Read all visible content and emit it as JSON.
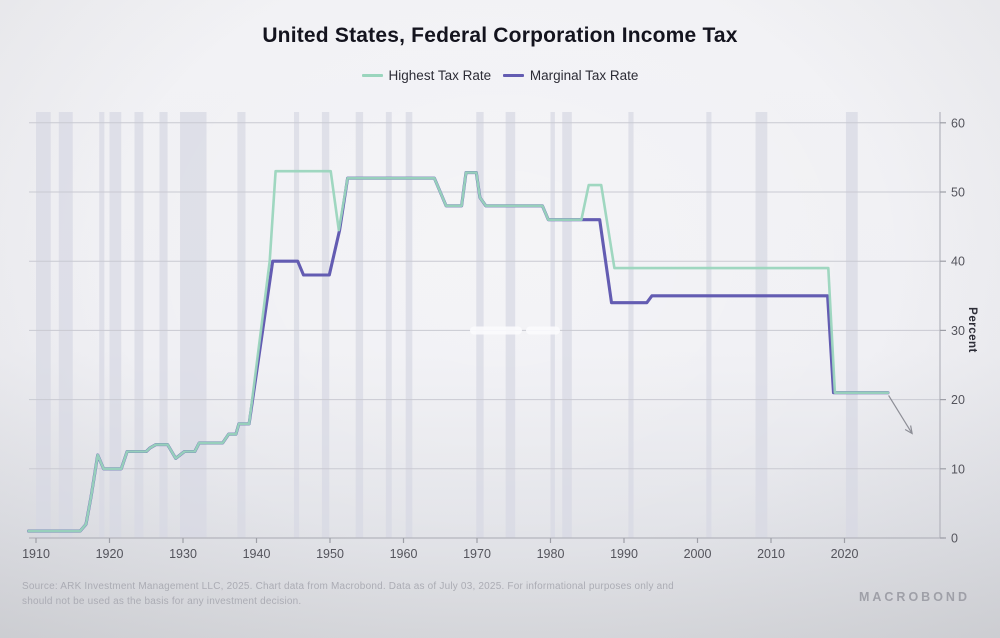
{
  "title": "United States, Federal Corporation Income Tax",
  "legend": [
    {
      "label": "Highest Tax Rate",
      "color": "#9ad5bd"
    },
    {
      "label": "Marginal Tax Rate",
      "color": "#635cb2"
    }
  ],
  "y_axis": {
    "unit_label": "Percent",
    "ticks": [
      0,
      10,
      20,
      30,
      40,
      50,
      60
    ]
  },
  "x_axis": {
    "ticks": [
      1910,
      1920,
      1930,
      1940,
      1950,
      1960,
      1970,
      1980,
      1990,
      2000,
      2010,
      2020
    ]
  },
  "footer": {
    "source_line1": "Source: ARK Investment Management LLC, 2025. Chart data from Macrobond. Data as of July 03, 2025. For informational purposes only and",
    "source_line2": "should not be used as the basis for any investment decision.",
    "logo": "MACROBOND"
  },
  "chart_data": {
    "type": "line",
    "title": "United States, Federal Corporation Income Tax",
    "xlabel": "",
    "ylabel": "Percent",
    "xlim": [
      1908.5,
      2027
    ],
    "ylim": [
      0,
      62
    ],
    "grid": true,
    "legend_position": "top",
    "background_bands_color": "#d7d8e3",
    "series": [
      {
        "name": "Highest Tax Rate",
        "color": "#9ad5bd",
        "points": [
          [
            1909,
            1
          ],
          [
            1916,
            1
          ],
          [
            1916.8,
            2
          ],
          [
            1917.5,
            6
          ],
          [
            1918.4,
            12
          ],
          [
            1919.2,
            10
          ],
          [
            1921.6,
            10
          ],
          [
            1922.4,
            12.5
          ],
          [
            1925,
            12.5
          ],
          [
            1925.5,
            13
          ],
          [
            1926.3,
            13.5
          ],
          [
            1927.9,
            13.5
          ],
          [
            1929,
            11.5
          ],
          [
            1930.2,
            12.5
          ],
          [
            1931.6,
            12.5
          ],
          [
            1932.2,
            13.75
          ],
          [
            1935.4,
            13.75
          ],
          [
            1936.2,
            15
          ],
          [
            1937.2,
            15
          ],
          [
            1937.6,
            16.5
          ],
          [
            1939,
            16.5
          ],
          [
            1941.8,
            40
          ],
          [
            1942.6,
            53
          ],
          [
            1950.1,
            53
          ],
          [
            1951.2,
            44.5
          ],
          [
            1952.4,
            52
          ],
          [
            1964.2,
            52
          ],
          [
            1965.8,
            48
          ],
          [
            1967.9,
            48
          ],
          [
            1968.5,
            52.8
          ],
          [
            1969.9,
            52.8
          ],
          [
            1970.4,
            49.2
          ],
          [
            1971.2,
            48
          ],
          [
            1978.9,
            48
          ],
          [
            1979.7,
            46
          ],
          [
            1984.2,
            46
          ],
          [
            1985.2,
            51
          ],
          [
            1986.9,
            51
          ],
          [
            1988.7,
            39
          ],
          [
            2017.8,
            39
          ],
          [
            2018.7,
            21
          ],
          [
            2025.9,
            21
          ]
        ]
      },
      {
        "name": "Marginal Tax Rate",
        "color": "#635cb2",
        "points": [
          [
            1909,
            1
          ],
          [
            1916,
            1
          ],
          [
            1916.8,
            2
          ],
          [
            1917.5,
            6
          ],
          [
            1918.4,
            12
          ],
          [
            1919.2,
            10
          ],
          [
            1921.6,
            10
          ],
          [
            1922.4,
            12.5
          ],
          [
            1925,
            12.5
          ],
          [
            1925.5,
            13
          ],
          [
            1926.3,
            13.5
          ],
          [
            1927.9,
            13.5
          ],
          [
            1929,
            11.5
          ],
          [
            1930.2,
            12.5
          ],
          [
            1931.6,
            12.5
          ],
          [
            1932.2,
            13.75
          ],
          [
            1935.4,
            13.75
          ],
          [
            1936.2,
            15
          ],
          [
            1937.2,
            15
          ],
          [
            1937.6,
            16.5
          ],
          [
            1939,
            16.5
          ],
          [
            1942.2,
            40
          ],
          [
            1945.6,
            40
          ],
          [
            1946.4,
            38
          ],
          [
            1949.9,
            38
          ],
          [
            1951.3,
            44.5
          ],
          [
            1952.4,
            52
          ],
          [
            1964.2,
            52
          ],
          [
            1965.8,
            48
          ],
          [
            1967.9,
            48
          ],
          [
            1968.5,
            52.8
          ],
          [
            1969.9,
            52.8
          ],
          [
            1970.4,
            49.2
          ],
          [
            1971.2,
            48
          ],
          [
            1978.9,
            48
          ],
          [
            1979.7,
            46
          ],
          [
            1986.7,
            46
          ],
          [
            1988.3,
            34
          ],
          [
            1993.1,
            34
          ],
          [
            1993.8,
            35
          ],
          [
            2017.7,
            35
          ],
          [
            2018.5,
            21
          ],
          [
            2025.9,
            21
          ]
        ]
      }
    ],
    "recession_bands": [
      [
        1910.0,
        1912.0
      ],
      [
        1913.1,
        1915.0
      ],
      [
        1918.6,
        1919.3
      ],
      [
        1920.0,
        1921.6
      ],
      [
        1923.4,
        1924.6
      ],
      [
        1926.8,
        1927.9
      ],
      [
        1929.6,
        1933.2
      ],
      [
        1937.4,
        1938.5
      ],
      [
        1945.1,
        1945.8
      ],
      [
        1948.9,
        1949.9
      ],
      [
        1953.5,
        1954.5
      ],
      [
        1957.6,
        1958.4
      ],
      [
        1960.3,
        1961.2
      ],
      [
        1969.9,
        1970.9
      ],
      [
        1973.9,
        1975.2
      ],
      [
        1980.0,
        1980.6
      ],
      [
        1981.6,
        1982.9
      ],
      [
        1990.6,
        1991.3
      ],
      [
        2001.2,
        2001.9
      ],
      [
        2007.9,
        2009.5
      ],
      [
        2020.2,
        2021.8
      ]
    ],
    "annotation_arrow": {
      "from_year": 2026.0,
      "from_value": 20.6,
      "to_year": 2029.2,
      "to_value": 15.1
    }
  }
}
